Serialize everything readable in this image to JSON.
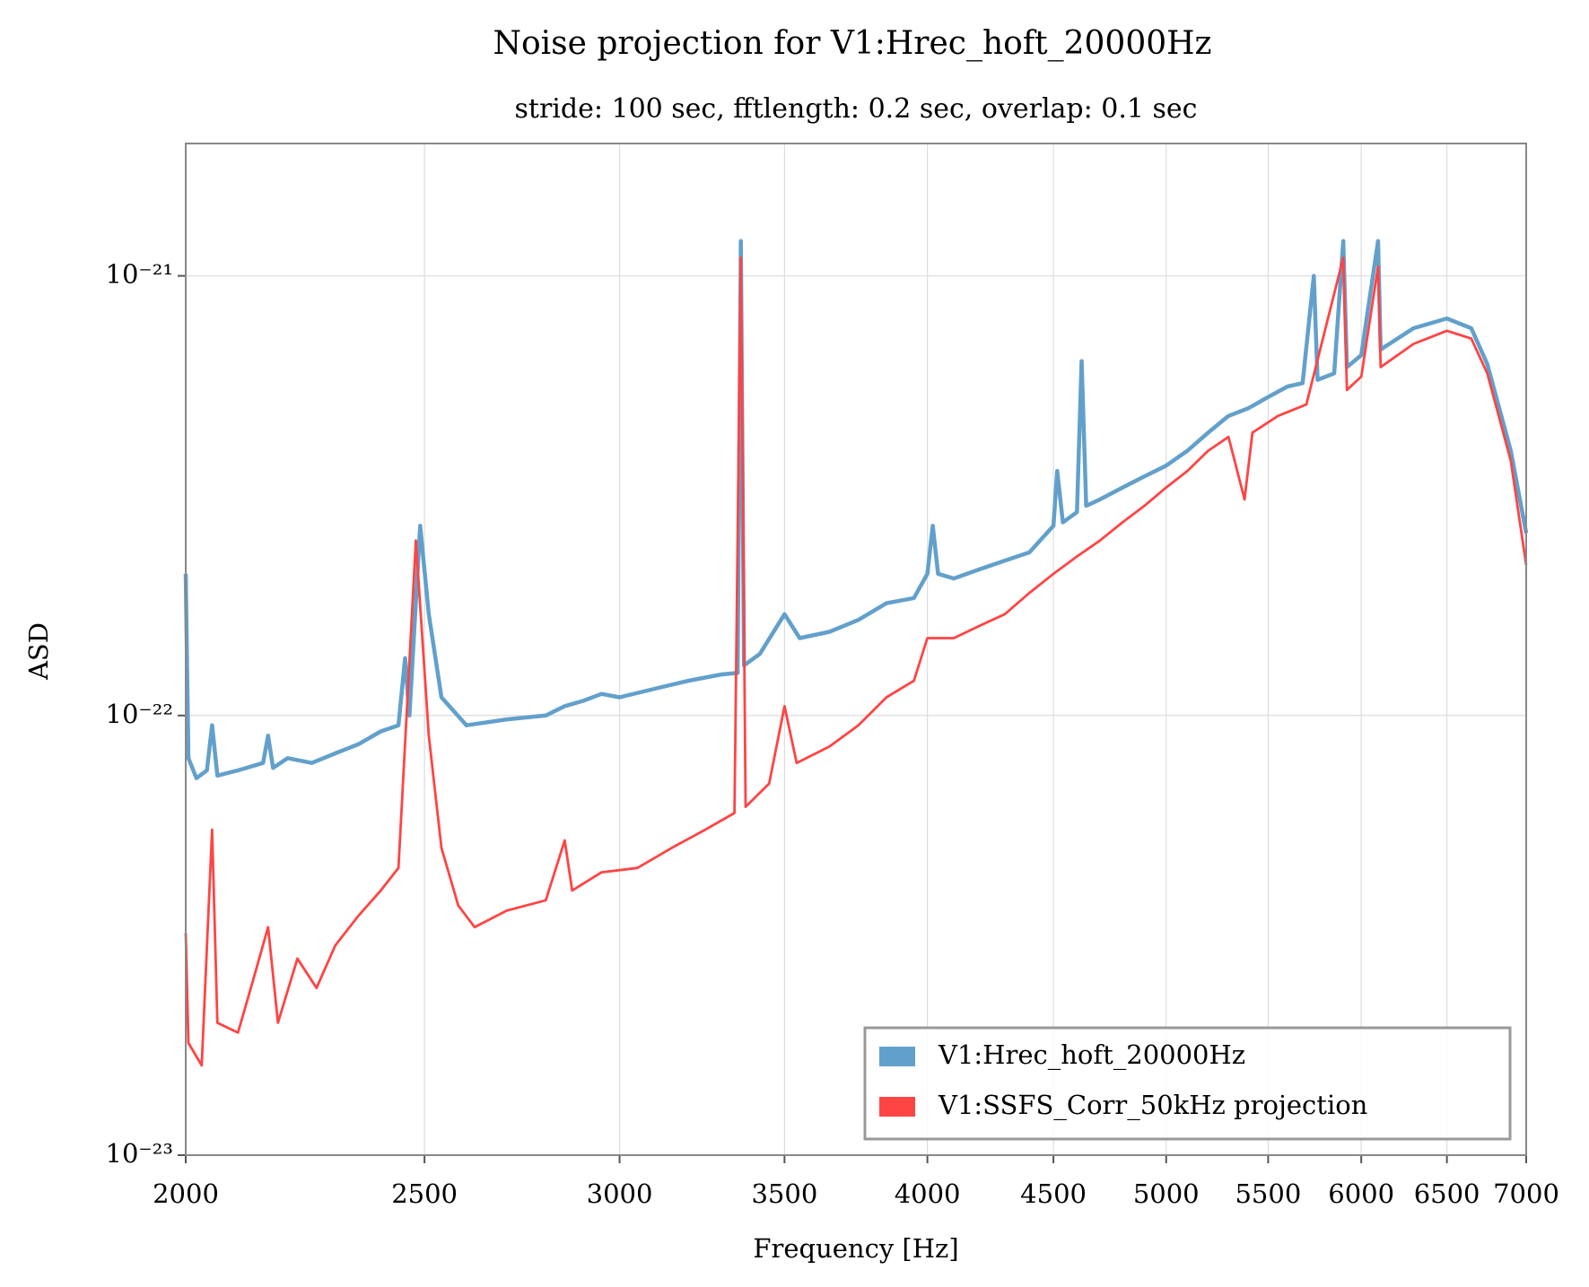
{
  "chart_data": {
    "type": "line",
    "title": "Noise projection for V1:Hrec_hoft_20000Hz",
    "subtitle": "stride: 100 sec, fftlength: 0.2 sec, overlap: 0.1 sec",
    "xlabel": "Frequency [Hz]",
    "ylabel": "ASD",
    "xscale": "log",
    "yscale": "log",
    "grid": true,
    "legend": "lower right",
    "xlim": [
      2000,
      7000
    ],
    "xticks": [
      2000,
      2500,
      3000,
      3500,
      4000,
      4500,
      5000,
      5500,
      6000,
      6500,
      7000
    ],
    "ylim": [
      1e-23,
      2e-21
    ],
    "yticks": [
      {
        "value": 1e-23,
        "label": "10⁻²³"
      },
      {
        "value": 1e-22,
        "label": "10⁻²²"
      },
      {
        "value": 1e-21,
        "label": "10⁻²¹"
      }
    ],
    "series": [
      {
        "name": "V1:Hrec_hoft_20000Hz",
        "color": "#62a0cc",
        "x": [
          2000,
          2005,
          2020,
          2040,
          2050,
          2060,
          2100,
          2150,
          2160,
          2170,
          2200,
          2250,
          2300,
          2350,
          2400,
          2440,
          2455,
          2465,
          2490,
          2510,
          2540,
          2600,
          2700,
          2800,
          2850,
          2900,
          2950,
          3000,
          3100,
          3200,
          3300,
          3350,
          3360,
          3370,
          3420,
          3500,
          3550,
          3650,
          3750,
          3850,
          3950,
          4000,
          4020,
          4040,
          4100,
          4200,
          4300,
          4400,
          4500,
          4516,
          4540,
          4600,
          4620,
          4640,
          4700,
          4800,
          4900,
          5000,
          5100,
          5200,
          5300,
          5400,
          5500,
          5600,
          5680,
          5740,
          5760,
          5850,
          5900,
          5920,
          6000,
          6095,
          6110,
          6300,
          6500,
          6650,
          6750,
          6900,
          7000
        ],
        "values": [
          2.1e-22,
          8e-23,
          7.2e-23,
          7.5e-23,
          9.5e-23,
          7.3e-23,
          7.5e-23,
          7.8e-23,
          9e-23,
          7.6e-23,
          8e-23,
          7.8e-23,
          8.2e-23,
          8.6e-23,
          9.2e-23,
          9.5e-23,
          1.35e-22,
          1e-22,
          2.7e-22,
          1.7e-22,
          1.1e-22,
          9.5e-23,
          9.8e-23,
          1e-22,
          1.05e-22,
          1.08e-22,
          1.12e-22,
          1.1e-22,
          1.15e-22,
          1.2e-22,
          1.24e-22,
          1.25e-22,
          1.2e-21,
          1.3e-22,
          1.38e-22,
          1.7e-22,
          1.5e-22,
          1.55e-22,
          1.65e-22,
          1.8e-22,
          1.85e-22,
          2.1e-22,
          2.7e-22,
          2.1e-22,
          2.05e-22,
          2.15e-22,
          2.25e-22,
          2.35e-22,
          2.7e-22,
          3.6e-22,
          2.75e-22,
          2.9e-22,
          6.4e-22,
          3e-22,
          3.1e-22,
          3.3e-22,
          3.5e-22,
          3.7e-22,
          4e-22,
          4.4e-22,
          4.8e-22,
          5e-22,
          5.3e-22,
          5.6e-22,
          5.7e-22,
          1e-21,
          5.8e-22,
          6e-22,
          1.2e-21,
          6.2e-22,
          6.6e-22,
          1.2e-21,
          6.8e-22,
          7.6e-22,
          8e-22,
          7.6e-22,
          6.3e-22,
          4e-22,
          2.6e-22
        ]
      },
      {
        "name": "V1:SSFS_Corr_50kHz projection",
        "color": "#ff4444",
        "x": [
          2000,
          2005,
          2030,
          2050,
          2060,
          2100,
          2130,
          2160,
          2180,
          2220,
          2260,
          2300,
          2350,
          2400,
          2440,
          2480,
          2510,
          2540,
          2580,
          2620,
          2700,
          2800,
          2850,
          2870,
          2950,
          3050,
          3150,
          3250,
          3340,
          3360,
          3375,
          3450,
          3500,
          3540,
          3650,
          3750,
          3850,
          3950,
          4000,
          4100,
          4200,
          4300,
          4400,
          4500,
          4600,
          4700,
          4800,
          4900,
          5000,
          5100,
          5200,
          5300,
          5380,
          5420,
          5550,
          5700,
          5900,
          5920,
          6000,
          6095,
          6110,
          6300,
          6500,
          6650,
          6750,
          6900,
          7000
        ],
        "values": [
          3.2e-23,
          1.8e-23,
          1.6e-23,
          5.5e-23,
          2e-23,
          1.9e-23,
          2.5e-23,
          3.3e-23,
          2e-23,
          2.8e-23,
          2.4e-23,
          3e-23,
          3.5e-23,
          4e-23,
          4.5e-23,
          2.5e-22,
          9e-23,
          5e-23,
          3.7e-23,
          3.3e-23,
          3.6e-23,
          3.8e-23,
          5.2e-23,
          4e-23,
          4.4e-23,
          4.5e-23,
          5e-23,
          5.5e-23,
          6e-23,
          1.1e-21,
          6.2e-23,
          7e-23,
          1.05e-22,
          7.8e-23,
          8.5e-23,
          9.5e-23,
          1.1e-22,
          1.2e-22,
          1.5e-22,
          1.5e-22,
          1.6e-22,
          1.7e-22,
          1.9e-22,
          2.1e-22,
          2.3e-22,
          2.5e-22,
          2.75e-22,
          3e-22,
          3.3e-22,
          3.6e-22,
          4e-22,
          4.3e-22,
          3.1e-22,
          4.4e-22,
          4.8e-22,
          5.1e-22,
          1.1e-21,
          5.5e-22,
          5.9e-22,
          1.05e-21,
          6.2e-22,
          7e-22,
          7.5e-22,
          7.2e-22,
          6e-22,
          3.8e-22,
          2.2e-22
        ]
      }
    ]
  }
}
